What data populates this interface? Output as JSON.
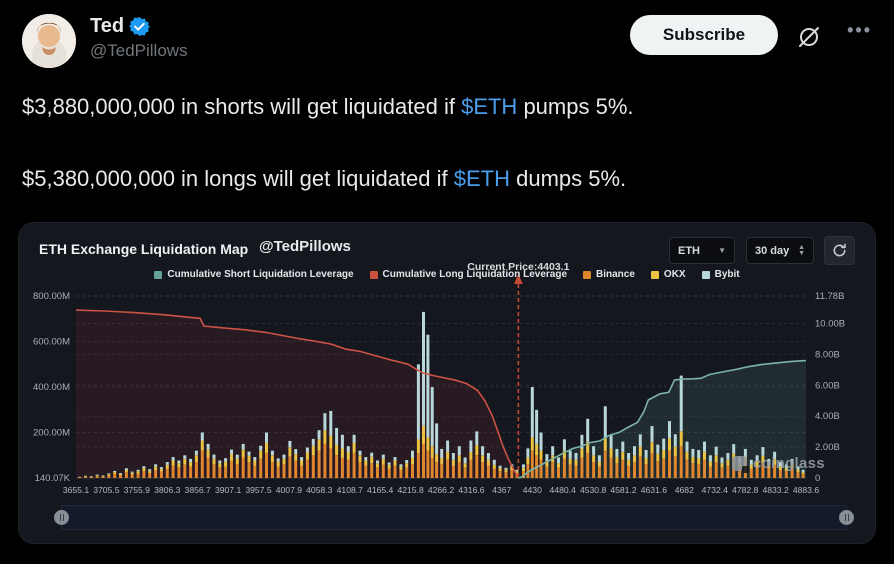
{
  "header": {
    "name": "Ted",
    "handle": "@TedPillows",
    "subscribe_label": "Subscribe",
    "verified": true,
    "more_label": "•••"
  },
  "tweet": {
    "line1": {
      "pre": "$3,880,000,000 in shorts will get liquidated if ",
      "ticker": "$ETH",
      "post": " pumps 5%."
    },
    "line2": {
      "pre": "$5,380,000,000 in longs will get liquidated if ",
      "ticker": "$ETH",
      "post": " dumps 5%."
    },
    "link_color": "#4a9eee"
  },
  "chart_panel": {
    "title": "ETH Exchange Liquidation Map",
    "handle": "@TedPillows",
    "coin_select": "ETH",
    "range_select": "30 day",
    "watermark": "coinglass"
  },
  "chart_data": {
    "type": "bar",
    "subtype": "liquidation-map: stacked exchange bars (left axis, $M) + two cumulative leverage lines (right axis, $B)",
    "title": "ETH Exchange Liquidation Map",
    "current_price": 4403.1,
    "current_price_label": "Current Price:4403.1",
    "current_price_fraction": 0.606,
    "guide_line_color": "#bf4a35",
    "x_tick_labels": [
      "3655.1",
      "3705.5",
      "3755.9",
      "3806.3",
      "3856.7",
      "3907.1",
      "3957.5",
      "4007.9",
      "4058.3",
      "4108.7",
      "4165.4",
      "4215.8",
      "4266.2",
      "4316.6",
      "4367",
      "4430",
      "4480.4",
      "4530.8",
      "4581.2",
      "4631.6",
      "4682",
      "4732.4",
      "4782.8",
      "4833.2",
      "4883.6"
    ],
    "left_axis": {
      "tick_labels": [
        "800.00M",
        "600.00M",
        "400.00M",
        "200.00M",
        "140.07K"
      ],
      "max_m": 800,
      "gridline_values_m": [
        600,
        400,
        200
      ]
    },
    "right_axis": {
      "tick_labels": [
        "11.78B",
        "10.00B",
        "8.00B",
        "6.00B",
        "4.00B",
        "2.00B",
        "0"
      ],
      "max_b": 11.78,
      "gridline_values_b": [
        10,
        8,
        6,
        4,
        2
      ]
    },
    "legend": [
      {
        "label": "Cumulative Short Liquidation Leverage",
        "color": "#63a296"
      },
      {
        "label": "Cumulative Long Liquidation Leverage",
        "color": "#cf5240"
      },
      {
        "label": "Binance",
        "color": "#e0862f"
      },
      {
        "label": "OKX",
        "color": "#ecc243"
      },
      {
        "label": "Bybit",
        "color": "#b7d7da"
      }
    ],
    "series": {
      "cumulative_long_leverage": {
        "name": "Cumulative Long Liquidation Leverage",
        "axis": "left",
        "unit": "M",
        "color": "#cd5345",
        "fill": "rgba(150,45,70,0.16)",
        "points": [
          [
            0,
            738
          ],
          [
            0.04,
            734
          ],
          [
            0.08,
            727
          ],
          [
            0.12,
            718
          ],
          [
            0.15,
            708
          ],
          [
            0.17,
            702
          ],
          [
            0.175,
            668
          ],
          [
            0.2,
            660
          ],
          [
            0.23,
            652
          ],
          [
            0.26,
            640
          ],
          [
            0.29,
            622
          ],
          [
            0.31,
            610
          ],
          [
            0.33,
            600
          ],
          [
            0.35,
            588
          ],
          [
            0.37,
            566
          ],
          [
            0.39,
            556
          ],
          [
            0.41,
            538
          ],
          [
            0.43,
            520
          ],
          [
            0.445,
            508
          ],
          [
            0.455,
            500
          ],
          [
            0.465,
            480
          ],
          [
            0.475,
            462
          ],
          [
            0.49,
            450
          ],
          [
            0.505,
            440
          ],
          [
            0.52,
            430
          ],
          [
            0.535,
            415
          ],
          [
            0.55,
            385
          ],
          [
            0.56,
            340
          ],
          [
            0.57,
            275
          ],
          [
            0.578,
            205
          ],
          [
            0.585,
            140
          ],
          [
            0.592,
            85
          ],
          [
            0.6,
            35
          ],
          [
            0.606,
            2
          ]
        ]
      },
      "cumulative_short_leverage": {
        "name": "Cumulative Short Liquidation Leverage",
        "axis": "right",
        "unit": "B",
        "color": "#7db4a8",
        "fill": "rgba(90,145,135,0.18)",
        "points": [
          [
            0.606,
            0
          ],
          [
            0.612,
            0.1
          ],
          [
            0.618,
            0.35
          ],
          [
            0.625,
            0.55
          ],
          [
            0.632,
            0.72
          ],
          [
            0.641,
            0.95
          ],
          [
            0.655,
            1.3
          ],
          [
            0.667,
            1.6
          ],
          [
            0.68,
            1.9
          ],
          [
            0.692,
            2.05
          ],
          [
            0.705,
            2.3
          ],
          [
            0.718,
            2.4
          ],
          [
            0.73,
            2.75
          ],
          [
            0.744,
            2.95
          ],
          [
            0.757,
            3.3
          ],
          [
            0.769,
            3.6
          ],
          [
            0.778,
            4.3
          ],
          [
            0.784,
            5.05
          ],
          [
            0.8,
            5.45
          ],
          [
            0.812,
            5.55
          ],
          [
            0.82,
            6.35
          ],
          [
            0.832,
            6.4
          ],
          [
            0.845,
            6.42
          ],
          [
            0.856,
            6.45
          ],
          [
            0.868,
            6.7
          ],
          [
            0.881,
            6.82
          ],
          [
            0.895,
            6.95
          ],
          [
            0.906,
            7.05
          ],
          [
            0.92,
            7.2
          ],
          [
            0.94,
            7.35
          ],
          [
            0.96,
            7.45
          ],
          [
            0.98,
            7.55
          ],
          [
            1,
            7.6
          ]
        ]
      },
      "exchange_bars": {
        "stack_order": [
          "Binance",
          "OKX",
          "Bybit"
        ],
        "colors": [
          "#e0862f",
          "#ecc243",
          "#b7d7da"
        ],
        "unit": "M",
        "points": [
          [
            0.005,
            3,
            2,
            1
          ],
          [
            0.013,
            5,
            3,
            2
          ],
          [
            0.021,
            4,
            2,
            2
          ],
          [
            0.029,
            8,
            4,
            3
          ],
          [
            0.037,
            6,
            3,
            2
          ],
          [
            0.045,
            10,
            6,
            4
          ],
          [
            0.053,
            18,
            8,
            5
          ],
          [
            0.061,
            12,
            6,
            4
          ],
          [
            0.069,
            25,
            10,
            8
          ],
          [
            0.077,
            15,
            8,
            5
          ],
          [
            0.085,
            20,
            10,
            6
          ],
          [
            0.093,
            30,
            14,
            8
          ],
          [
            0.101,
            22,
            10,
            7
          ],
          [
            0.109,
            35,
            15,
            10
          ],
          [
            0.117,
            28,
            12,
            8
          ],
          [
            0.125,
            40,
            18,
            12
          ],
          [
            0.133,
            55,
            22,
            15
          ],
          [
            0.141,
            45,
            20,
            12
          ],
          [
            0.149,
            60,
            25,
            15
          ],
          [
            0.157,
            50,
            20,
            14
          ],
          [
            0.165,
            70,
            30,
            20
          ],
          [
            0.173,
            120,
            45,
            35
          ],
          [
            0.181,
            90,
            35,
            25
          ],
          [
            0.189,
            60,
            25,
            18
          ],
          [
            0.197,
            45,
            20,
            12
          ],
          [
            0.205,
            50,
            22,
            15
          ],
          [
            0.213,
            75,
            30,
            20
          ],
          [
            0.221,
            60,
            25,
            18
          ],
          [
            0.229,
            90,
            35,
            25
          ],
          [
            0.237,
            70,
            28,
            18
          ],
          [
            0.245,
            55,
            22,
            15
          ],
          [
            0.253,
            85,
            35,
            22
          ],
          [
            0.261,
            110,
            45,
            45
          ],
          [
            0.269,
            70,
            30,
            20
          ],
          [
            0.277,
            50,
            22,
            14
          ],
          [
            0.285,
            60,
            25,
            18
          ],
          [
            0.293,
            95,
            40,
            28
          ],
          [
            0.301,
            75,
            30,
            22
          ],
          [
            0.309,
            55,
            22,
            15
          ],
          [
            0.317,
            80,
            32,
            22
          ],
          [
            0.325,
            100,
            42,
            30
          ],
          [
            0.333,
            120,
            50,
            40
          ],
          [
            0.341,
            150,
            60,
            75
          ],
          [
            0.349,
            130,
            55,
            110
          ],
          [
            0.357,
            100,
            45,
            75
          ],
          [
            0.365,
            90,
            40,
            60
          ],
          [
            0.373,
            80,
            35,
            25
          ],
          [
            0.381,
            110,
            45,
            35
          ],
          [
            0.389,
            70,
            30,
            20
          ],
          [
            0.397,
            55,
            22,
            15
          ],
          [
            0.405,
            65,
            28,
            18
          ],
          [
            0.413,
            45,
            20,
            12
          ],
          [
            0.421,
            60,
            25,
            18
          ],
          [
            0.429,
            40,
            18,
            10
          ],
          [
            0.437,
            55,
            22,
            15
          ],
          [
            0.445,
            35,
            15,
            10
          ],
          [
            0.453,
            45,
            20,
            14
          ],
          [
            0.461,
            60,
            30,
            30
          ],
          [
            0.469,
            110,
            60,
            330
          ],
          [
            0.476,
            150,
            80,
            500
          ],
          [
            0.482,
            120,
            60,
            450
          ],
          [
            0.488,
            90,
            50,
            260
          ],
          [
            0.494,
            70,
            35,
            135
          ],
          [
            0.501,
            60,
            28,
            40
          ],
          [
            0.509,
            80,
            35,
            50
          ],
          [
            0.517,
            55,
            25,
            30
          ],
          [
            0.525,
            70,
            30,
            40
          ],
          [
            0.533,
            45,
            20,
            25
          ],
          [
            0.541,
            80,
            35,
            50
          ],
          [
            0.549,
            100,
            45,
            60
          ],
          [
            0.557,
            70,
            30,
            40
          ],
          [
            0.565,
            55,
            25,
            30
          ],
          [
            0.573,
            40,
            18,
            22
          ],
          [
            0.581,
            30,
            14,
            10
          ],
          [
            0.589,
            25,
            12,
            8
          ],
          [
            0.597,
            35,
            15,
            10
          ],
          [
            0.604,
            20,
            10,
            6
          ],
          [
            0.613,
            30,
            15,
            15
          ],
          [
            0.619,
            60,
            30,
            40
          ],
          [
            0.625,
            120,
            60,
            220
          ],
          [
            0.631,
            100,
            50,
            150
          ],
          [
            0.637,
            80,
            40,
            80
          ],
          [
            0.645,
            50,
            25,
            30
          ],
          [
            0.653,
            70,
            30,
            40
          ],
          [
            0.661,
            45,
            20,
            25
          ],
          [
            0.669,
            85,
            35,
            50
          ],
          [
            0.677,
            60,
            25,
            35
          ],
          [
            0.685,
            55,
            25,
            30
          ],
          [
            0.693,
            90,
            40,
            60
          ],
          [
            0.701,
            110,
            50,
            100
          ],
          [
            0.709,
            70,
            30,
            40
          ],
          [
            0.717,
            50,
            22,
            28
          ],
          [
            0.725,
            120,
            55,
            140
          ],
          [
            0.733,
            90,
            40,
            60
          ],
          [
            0.741,
            65,
            28,
            35
          ],
          [
            0.749,
            80,
            35,
            45
          ],
          [
            0.757,
            55,
            25,
            30
          ],
          [
            0.765,
            70,
            30,
            40
          ],
          [
            0.773,
            95,
            42,
            55
          ],
          [
            0.781,
            60,
            28,
            35
          ],
          [
            0.789,
            110,
            48,
            70
          ],
          [
            0.797,
            75,
            32,
            40
          ],
          [
            0.805,
            85,
            38,
            50
          ],
          [
            0.813,
            120,
            55,
            75
          ],
          [
            0.821,
            95,
            42,
            55
          ],
          [
            0.829,
            140,
            65,
            245
          ],
          [
            0.837,
            80,
            35,
            45
          ],
          [
            0.845,
            65,
            28,
            35
          ],
          [
            0.853,
            60,
            28,
            35
          ],
          [
            0.861,
            80,
            35,
            45
          ],
          [
            0.869,
            50,
            22,
            28
          ],
          [
            0.877,
            70,
            30,
            38
          ],
          [
            0.885,
            45,
            20,
            25
          ],
          [
            0.893,
            55,
            25,
            30
          ],
          [
            0.901,
            75,
            32,
            42
          ],
          [
            0.909,
            48,
            20,
            26
          ],
          [
            0.917,
            65,
            28,
            35
          ],
          [
            0.925,
            40,
            18,
            22
          ],
          [
            0.933,
            50,
            22,
            28
          ],
          [
            0.941,
            68,
            30,
            38
          ],
          [
            0.949,
            42,
            18,
            24
          ],
          [
            0.957,
            58,
            25,
            32
          ],
          [
            0.965,
            35,
            15,
            20
          ],
          [
            0.973,
            30,
            14,
            16
          ],
          [
            0.981,
            42,
            18,
            24
          ],
          [
            0.989,
            25,
            12,
            14
          ],
          [
            0.996,
            18,
            8,
            10
          ]
        ]
      }
    },
    "watermark": "coinglass",
    "legend_position": "top-center",
    "grid": "dashed horizontal"
  }
}
